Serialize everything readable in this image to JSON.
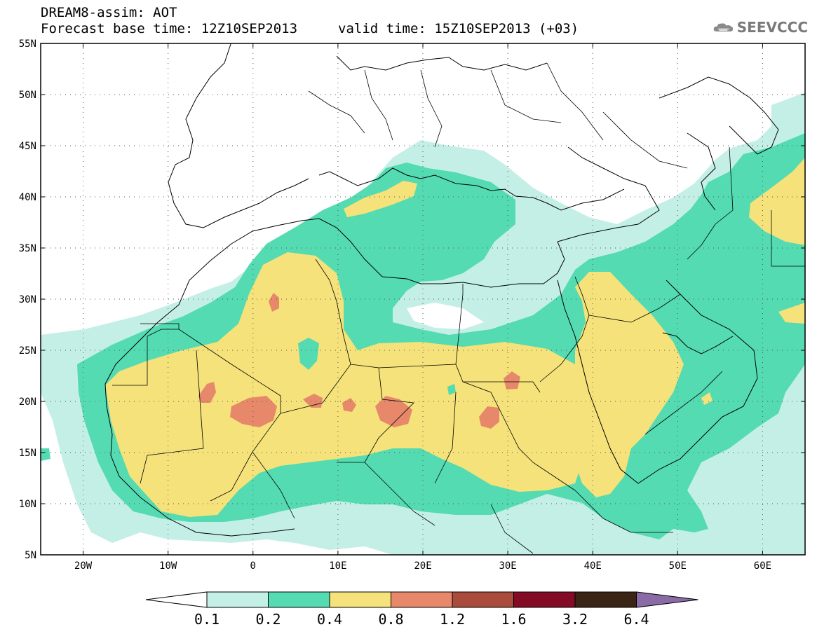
{
  "header": {
    "title_line1": "DREAM8-assim: AOT",
    "title_line2": "Forecast base time: 12Z10SEP2013",
    "valid_time": "valid time: 15Z10SEP2013 (+03)"
  },
  "logo": {
    "text": "SEEVCCC",
    "icon": "cloud-icon"
  },
  "map": {
    "lon_range": [
      -25,
      65
    ],
    "lat_range": [
      5,
      55
    ],
    "x_ticks": [
      "20W",
      "10W",
      "0",
      "10E",
      "20E",
      "30E",
      "40E",
      "50E",
      "60E"
    ],
    "x_tick_values": [
      -20,
      -10,
      0,
      10,
      20,
      30,
      40,
      50,
      60
    ],
    "y_ticks": [
      "5N",
      "10N",
      "15N",
      "20N",
      "25N",
      "30N",
      "35N",
      "40N",
      "45N",
      "50N",
      "55N"
    ],
    "y_tick_values": [
      5,
      10,
      15,
      20,
      25,
      30,
      35,
      40,
      45,
      50,
      55
    ],
    "grid": "dotted",
    "variable": "AOT"
  },
  "colorbar": {
    "labels": [
      "0.1",
      "0.2",
      "0.4",
      "0.8",
      "1.2",
      "1.6",
      "3.2",
      "6.4"
    ],
    "colors": [
      "#c4efe6",
      "#54dbb1",
      "#f5e27a",
      "#e7886a",
      "#a94c3c",
      "#830b26",
      "#3a2416",
      "#8b6ba6"
    ],
    "low_end_color": "#ffffff"
  },
  "levels": {
    "l1": "#c4efe6",
    "l2": "#54dbb1",
    "l3": "#f5e27a",
    "l4": "#e7886a"
  }
}
